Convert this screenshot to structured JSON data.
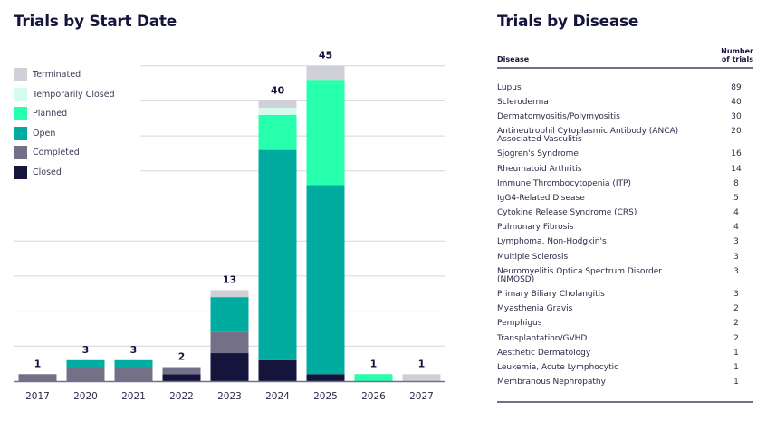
{
  "chart_data": {
    "type": "bar",
    "stacked": true,
    "title": "Trials by Start Date",
    "categories": [
      "2017",
      "2020",
      "2021",
      "2022",
      "2023",
      "2024",
      "2025",
      "2026",
      "2027"
    ],
    "totals": [
      1,
      3,
      3,
      2,
      13,
      40,
      45,
      1,
      1
    ],
    "series": [
      {
        "name": "Closed",
        "color": "#15143c",
        "values": [
          0,
          0,
          0,
          1,
          4,
          3,
          1,
          0,
          0
        ]
      },
      {
        "name": "Completed",
        "color": "#737088",
        "values": [
          1,
          2,
          2,
          1,
          3,
          0,
          0,
          0,
          0
        ]
      },
      {
        "name": "Open",
        "color": "#00ac9f",
        "values": [
          0,
          1,
          1,
          0,
          5,
          30,
          27,
          0,
          0
        ]
      },
      {
        "name": "Planned",
        "color": "#26ffab",
        "values": [
          0,
          0,
          0,
          0,
          0,
          5,
          15,
          1,
          0
        ]
      },
      {
        "name": "Temporarily Closed",
        "color": "#d4fbee",
        "values": [
          0,
          0,
          0,
          0,
          0,
          1,
          0,
          0,
          0
        ]
      },
      {
        "name": "Terminated",
        "color": "#d0d0d8",
        "values": [
          0,
          0,
          0,
          0,
          1,
          1,
          2,
          0,
          1
        ]
      }
    ],
    "legend_order": [
      "Terminated",
      "Temporarily Closed",
      "Planned",
      "Open",
      "Completed",
      "Closed"
    ],
    "ylim": [
      0,
      45
    ],
    "grid": true,
    "legend_placement": "top-left"
  },
  "disease_table": {
    "title": "Trials by Disease",
    "header": {
      "disease": "Disease",
      "count_line1": "Number",
      "count_line2": "of trials"
    },
    "rows": [
      {
        "name": "Lupus",
        "count": "89"
      },
      {
        "name": "Scleroderma",
        "count": "40"
      },
      {
        "name": "Dermatomyositis/Polymyositis",
        "count": "30"
      },
      {
        "name": "Antineutrophil Cytoplasmic Antibody (ANCA) Associated Vasculitis",
        "count": "20"
      },
      {
        "name": "Sjogren's Syndrome",
        "count": "16"
      },
      {
        "name": "Rheumatoid Arthritis",
        "count": "14"
      },
      {
        "name": "Immune Thrombocytopenia (ITP)",
        "count": "8"
      },
      {
        "name": "IgG4-Related Disease",
        "count": "5"
      },
      {
        "name": "Cytokine Release Syndrome (CRS)",
        "count": "4"
      },
      {
        "name": "Pulmonary Fibrosis",
        "count": "4"
      },
      {
        "name": "Lymphoma, Non-Hodgkin's",
        "count": "3"
      },
      {
        "name": "Multiple Sclerosis",
        "count": "3"
      },
      {
        "name": "Neuromyelitis Optica Spectrum Disorder (NMOSD)",
        "count": "3"
      },
      {
        "name": "Primary Biliary Cholangitis",
        "count": "3"
      },
      {
        "name": "Myasthenia Gravis",
        "count": "2"
      },
      {
        "name": "Pemphigus",
        "count": "2"
      },
      {
        "name": "Transplantation/GVHD",
        "count": "2"
      },
      {
        "name": "Aesthetic Dermatology",
        "count": "1"
      },
      {
        "name": "Leukemia, Acute Lymphocytic",
        "count": "1"
      },
      {
        "name": "Membranous Nephropathy",
        "count": "1"
      }
    ]
  }
}
